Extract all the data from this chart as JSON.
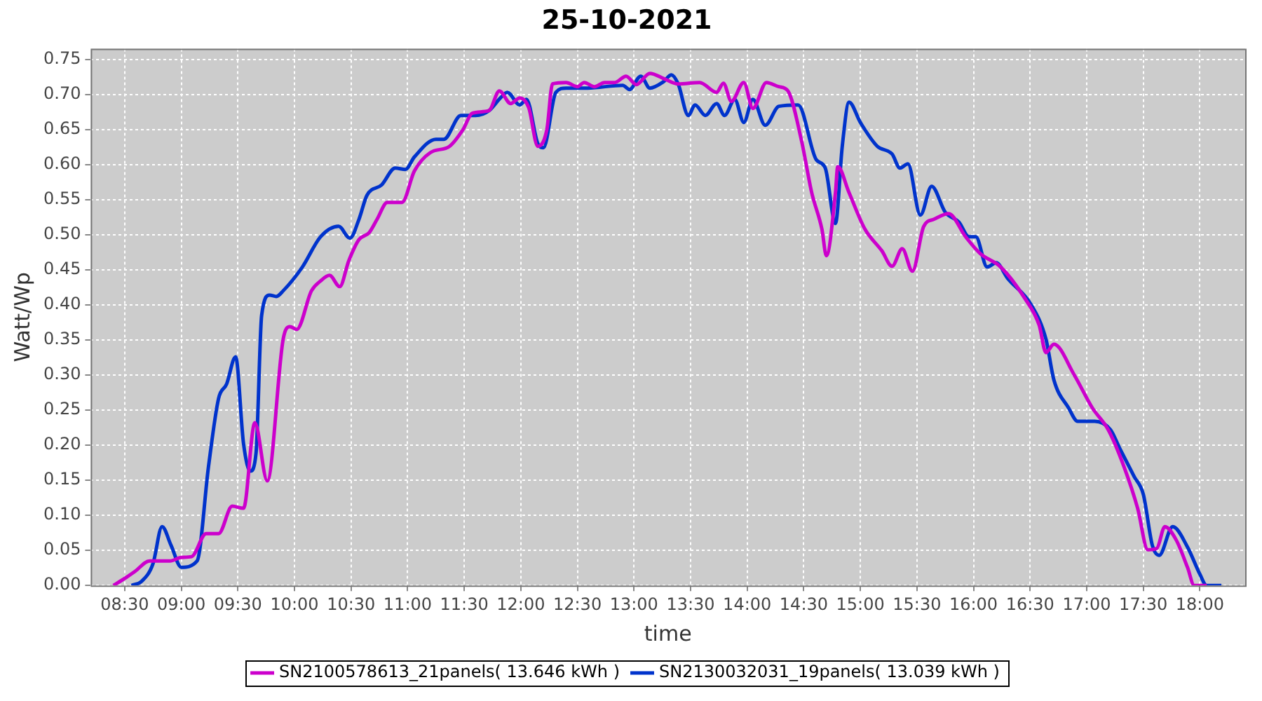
{
  "chart_data": {
    "type": "line",
    "title": "25-10-2021",
    "xlabel": "time",
    "ylabel": "Watt/Wp",
    "xlim": [
      8.2,
      18.4
    ],
    "xticks": [
      {
        "value": 8.5,
        "label": "08:30"
      },
      {
        "value": 9,
        "label": "09:00"
      },
      {
        "value": 9.5,
        "label": "09:30"
      },
      {
        "value": 10,
        "label": "10:00"
      },
      {
        "value": 10.5,
        "label": "10:30"
      },
      {
        "value": 11,
        "label": "11:00"
      },
      {
        "value": 11.5,
        "label": "11:30"
      },
      {
        "value": 12,
        "label": "12:00"
      },
      {
        "value": 12.5,
        "label": "12:30"
      },
      {
        "value": 13,
        "label": "13:00"
      },
      {
        "value": 13.5,
        "label": "13:30"
      },
      {
        "value": 14,
        "label": "14:00"
      },
      {
        "value": 14.5,
        "label": "14:30"
      },
      {
        "value": 15,
        "label": "15:00"
      },
      {
        "value": 15.5,
        "label": "15:30"
      },
      {
        "value": 16,
        "label": "16:00"
      },
      {
        "value": 16.5,
        "label": "16:30"
      },
      {
        "value": 17,
        "label": "17:00"
      },
      {
        "value": 17.5,
        "label": "17:30"
      },
      {
        "value": 18,
        "label": "18:00"
      }
    ],
    "ylim": [
      0,
      0.765
    ],
    "yticks": [
      {
        "value": 0,
        "label": "0.00"
      },
      {
        "value": 0.05,
        "label": "0.05"
      },
      {
        "value": 0.1,
        "label": "0.10"
      },
      {
        "value": 0.15,
        "label": "0.15"
      },
      {
        "value": 0.2,
        "label": "0.20"
      },
      {
        "value": 0.25,
        "label": "0.25"
      },
      {
        "value": 0.3,
        "label": "0.30"
      },
      {
        "value": 0.35,
        "label": "0.35"
      },
      {
        "value": 0.4,
        "label": "0.40"
      },
      {
        "value": 0.45,
        "label": "0.45"
      },
      {
        "value": 0.5,
        "label": "0.50"
      },
      {
        "value": 0.55,
        "label": "0.55"
      },
      {
        "value": 0.6,
        "label": "0.60"
      },
      {
        "value": 0.65,
        "label": "0.65"
      },
      {
        "value": 0.7,
        "label": "0.70"
      },
      {
        "value": 0.75,
        "label": "0.75"
      }
    ],
    "grid": true,
    "legend": "bottom",
    "marker": "none",
    "line_style": "solid",
    "series": [
      {
        "name": "SN2100578613_21panels( 13.646 kWh )",
        "color": "#cc00cc",
        "x": [
          8.4,
          8.5,
          8.59,
          8.72,
          8.9,
          9.0,
          9.09,
          9.22,
          9.33,
          9.45,
          9.55,
          9.65,
          9.76,
          9.9,
          9.96,
          10.02,
          10.15,
          10.23,
          10.31,
          10.4,
          10.48,
          10.57,
          10.66,
          10.73,
          10.82,
          10.95,
          11.06,
          11.2,
          11.37,
          11.49,
          11.57,
          11.72,
          11.81,
          11.91,
          11.99,
          12.07,
          12.15,
          12.23,
          12.28,
          12.4,
          12.5,
          12.56,
          12.65,
          12.74,
          12.83,
          12.93,
          13.02,
          13.14,
          13.27,
          13.39,
          13.58,
          13.73,
          13.79,
          13.86,
          13.97,
          14.05,
          14.17,
          14.28,
          14.36,
          14.48,
          14.57,
          14.66,
          14.7,
          14.78,
          14.8,
          14.9,
          15.04,
          15.19,
          15.28,
          15.37,
          15.46,
          15.56,
          15.65,
          15.78,
          15.93,
          16.06,
          16.24,
          16.45,
          16.58,
          16.64,
          16.71,
          16.89,
          17.05,
          17.19,
          17.33,
          17.45,
          17.54,
          17.62,
          17.69,
          17.79,
          17.89,
          17.95,
          18.06
        ],
        "values": [
          0,
          0.01,
          0.02,
          0.035,
          0.035,
          0.04,
          0.041,
          0.074,
          0.074,
          0.113,
          0.11,
          0.232,
          0.149,
          0.351,
          0.369,
          0.365,
          0.42,
          0.434,
          0.442,
          0.426,
          0.463,
          0.493,
          0.503,
          0.522,
          0.546,
          0.546,
          0.591,
          0.617,
          0.626,
          0.65,
          0.673,
          0.677,
          0.705,
          0.687,
          0.695,
          0.681,
          0.626,
          0.65,
          0.715,
          0.717,
          0.711,
          0.717,
          0.711,
          0.717,
          0.717,
          0.726,
          0.714,
          0.73,
          0.722,
          0.715,
          0.717,
          0.703,
          0.716,
          0.69,
          0.717,
          0.68,
          0.717,
          0.711,
          0.705,
          0.634,
          0.56,
          0.508,
          0.47,
          0.56,
          0.597,
          0.56,
          0.508,
          0.477,
          0.455,
          0.48,
          0.448,
          0.512,
          0.522,
          0.53,
          0.497,
          0.473,
          0.454,
          0.41,
          0.371,
          0.332,
          0.344,
          0.3,
          0.253,
          0.222,
          0.169,
          0.11,
          0.051,
          0.053,
          0.084,
          0.065,
          0.026,
          0,
          0
        ]
      },
      {
        "name": "SN2130032031_19panels( 13.039 kWh )",
        "color": "#0033cc",
        "x": [
          8.56,
          8.65,
          8.75,
          8.83,
          8.91,
          9.0,
          9.14,
          9.24,
          9.33,
          9.4,
          9.48,
          9.55,
          9.61,
          9.66,
          9.71,
          9.78,
          9.84,
          9.9,
          10.07,
          10.23,
          10.39,
          10.49,
          10.57,
          10.64,
          10.77,
          10.89,
          10.98,
          11.06,
          11.25,
          11.32,
          11.47,
          11.6,
          11.72,
          11.82,
          11.88,
          11.99,
          12.05,
          12.15,
          12.2,
          12.31,
          12.4,
          12.59,
          12.9,
          12.96,
          13.06,
          13.14,
          13.26,
          13.33,
          13.39,
          13.48,
          13.54,
          13.63,
          13.73,
          13.8,
          13.89,
          13.97,
          14.05,
          14.16,
          14.28,
          14.45,
          14.61,
          14.69,
          14.78,
          14.84,
          14.9,
          15.0,
          15.15,
          15.28,
          15.35,
          15.42,
          15.53,
          15.63,
          15.75,
          15.87,
          15.96,
          16.02,
          16.12,
          16.2,
          16.3,
          16.51,
          16.64,
          16.71,
          16.84,
          16.92,
          17.07,
          17.21,
          17.29,
          17.42,
          17.5,
          17.58,
          17.64,
          17.76,
          17.89,
          18.0,
          18.06,
          18.19
        ],
        "values": [
          0,
          0.006,
          0.031,
          0.084,
          0.057,
          0.026,
          0.035,
          0.169,
          0.267,
          0.287,
          0.326,
          0.202,
          0.163,
          0.188,
          0.385,
          0.414,
          0.412,
          0.42,
          0.454,
          0.497,
          0.512,
          0.495,
          0.522,
          0.556,
          0.571,
          0.595,
          0.593,
          0.611,
          0.636,
          0.636,
          0.67,
          0.67,
          0.677,
          0.695,
          0.703,
          0.685,
          0.693,
          0.63,
          0.624,
          0.703,
          0.709,
          0.709,
          0.713,
          0.707,
          0.726,
          0.709,
          0.718,
          0.728,
          0.715,
          0.67,
          0.685,
          0.67,
          0.687,
          0.67,
          0.693,
          0.66,
          0.693,
          0.656,
          0.683,
          0.685,
          0.607,
          0.595,
          0.516,
          0.626,
          0.689,
          0.66,
          0.626,
          0.615,
          0.595,
          0.601,
          0.528,
          0.569,
          0.532,
          0.518,
          0.497,
          0.497,
          0.454,
          0.46,
          0.438,
          0.4,
          0.351,
          0.293,
          0.253,
          0.234,
          0.234,
          0.222,
          0.196,
          0.155,
          0.13,
          0.057,
          0.043,
          0.084,
          0.055,
          0.016,
          0,
          0
        ]
      }
    ]
  }
}
